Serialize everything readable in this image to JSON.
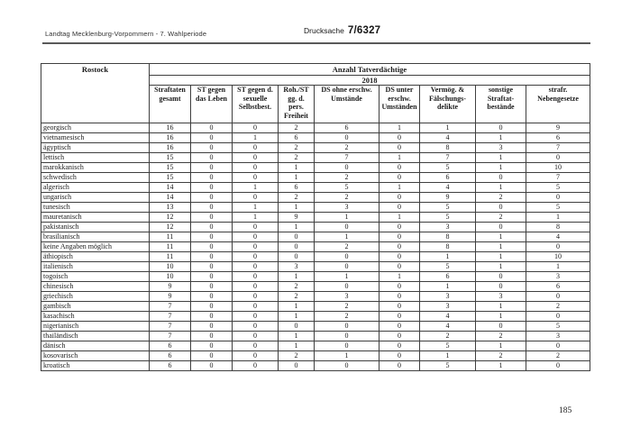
{
  "page": {
    "header_left": "Landtag Mecklenburg-Vorpommern - 7. Wahlperiode",
    "drucksache_label": "Drucksache",
    "drucksache_number": "7/6327",
    "page_number": "185"
  },
  "table": {
    "corner_label": "Rostock",
    "span_header": "Anzahl Tatverdächtige",
    "year": "2018",
    "columns": [
      "Straftaten gesamt",
      "ST gegen das Leben",
      "ST gegen d. sexuelle Selbstbest.",
      "Roh./ST gg. d. pers. Freiheit",
      "DS ohne erschw. Umstände",
      "DS unter erschw. Umständen",
      "Vermög. & Fälschungs-delikte",
      "sonstige Straftat-bestände",
      "strafr. Nebengesetze"
    ],
    "rows": [
      {
        "label": "georgisch",
        "values": [
          16,
          0,
          0,
          2,
          6,
          1,
          1,
          0,
          9
        ]
      },
      {
        "label": "vietnamesisch",
        "values": [
          16,
          0,
          1,
          6,
          0,
          0,
          4,
          1,
          6
        ]
      },
      {
        "label": "ägyptisch",
        "values": [
          16,
          0,
          0,
          2,
          2,
          0,
          8,
          3,
          7
        ]
      },
      {
        "label": "lettisch",
        "values": [
          15,
          0,
          0,
          2,
          7,
          1,
          7,
          1,
          0
        ]
      },
      {
        "label": "marokkanisch",
        "values": [
          15,
          0,
          0,
          1,
          0,
          0,
          5,
          1,
          10
        ]
      },
      {
        "label": "schwedisch",
        "values": [
          15,
          0,
          0,
          1,
          2,
          0,
          6,
          0,
          7
        ]
      },
      {
        "label": "algerisch",
        "values": [
          14,
          0,
          1,
          6,
          5,
          1,
          4,
          1,
          5
        ]
      },
      {
        "label": "ungarisch",
        "values": [
          14,
          0,
          0,
          2,
          2,
          0,
          9,
          2,
          0
        ]
      },
      {
        "label": "tunesisch",
        "values": [
          13,
          0,
          1,
          1,
          3,
          0,
          5,
          0,
          5
        ]
      },
      {
        "label": "mauretanisch",
        "values": [
          12,
          0,
          1,
          9,
          1,
          1,
          5,
          2,
          1
        ]
      },
      {
        "label": "pakistanisch",
        "values": [
          12,
          0,
          0,
          1,
          0,
          0,
          3,
          0,
          8
        ]
      },
      {
        "label": "brasilianisch",
        "values": [
          11,
          0,
          0,
          0,
          1,
          0,
          8,
          1,
          4
        ]
      },
      {
        "label": "keine Angaben möglich",
        "values": [
          11,
          0,
          0,
          0,
          2,
          0,
          8,
          1,
          0
        ]
      },
      {
        "label": "äthiopisch",
        "values": [
          11,
          0,
          0,
          0,
          0,
          0,
          1,
          1,
          10
        ]
      },
      {
        "label": "italienisch",
        "values": [
          10,
          0,
          0,
          3,
          0,
          0,
          5,
          1,
          1
        ]
      },
      {
        "label": "togoisch",
        "values": [
          10,
          0,
          0,
          1,
          1,
          1,
          6,
          0,
          3
        ]
      },
      {
        "label": "chinesisch",
        "values": [
          9,
          0,
          0,
          2,
          0,
          0,
          1,
          0,
          6
        ]
      },
      {
        "label": "griechisch",
        "values": [
          9,
          0,
          0,
          2,
          3,
          0,
          3,
          3,
          0
        ]
      },
      {
        "label": "gambisch",
        "values": [
          7,
          0,
          0,
          1,
          2,
          0,
          3,
          1,
          2
        ]
      },
      {
        "label": "kasachisch",
        "values": [
          7,
          0,
          0,
          1,
          2,
          0,
          4,
          1,
          0
        ]
      },
      {
        "label": "nigerianisch",
        "values": [
          7,
          0,
          0,
          0,
          0,
          0,
          4,
          0,
          5
        ]
      },
      {
        "label": "thailändisch",
        "values": [
          7,
          0,
          0,
          1,
          0,
          0,
          2,
          2,
          3
        ]
      },
      {
        "label": "dänisch",
        "values": [
          6,
          0,
          0,
          1,
          0,
          0,
          5,
          1,
          0
        ]
      },
      {
        "label": "kosovarisch",
        "values": [
          6,
          0,
          0,
          2,
          1,
          0,
          1,
          2,
          2
        ]
      },
      {
        "label": "kroatisch",
        "values": [
          6,
          0,
          0,
          0,
          0,
          0,
          5,
          1,
          0
        ]
      }
    ]
  }
}
